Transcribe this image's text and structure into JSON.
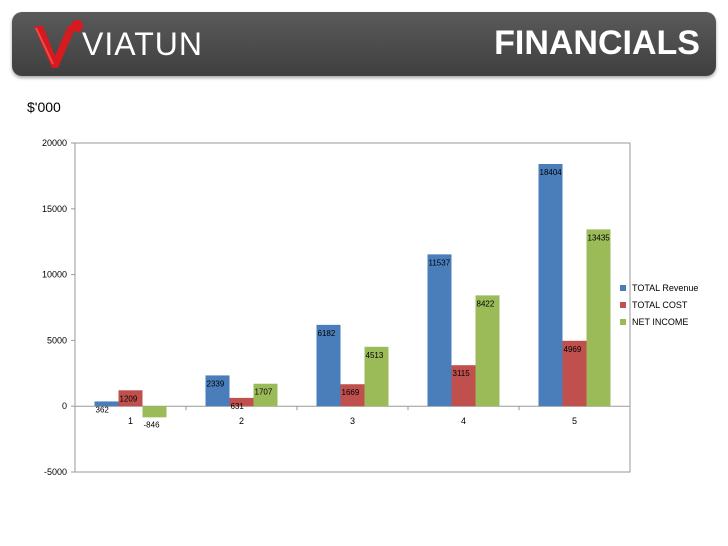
{
  "header": {
    "brand": "VIATUN",
    "title": "FINANCIALS"
  },
  "units_label": "$'000",
  "colors": {
    "revenue": "#4a7ebb",
    "cost": "#c0504d",
    "net": "#9bbb59",
    "logo_red": "#d71920"
  },
  "chart_data": {
    "type": "bar",
    "categories": [
      "1",
      "2",
      "3",
      "4",
      "5"
    ],
    "series": [
      {
        "name": "TOTAL Revenue",
        "values": [
          362,
          2339,
          6182,
          11537,
          18404
        ]
      },
      {
        "name": "TOTAL COST",
        "values": [
          1209,
          631,
          1669,
          3115,
          4969
        ]
      },
      {
        "name": "NET INCOME",
        "values": [
          -846,
          1707,
          4513,
          8422,
          13435
        ]
      }
    ],
    "ylim": [
      -5000,
      20000
    ],
    "yticks": [
      -5000,
      0,
      5000,
      10000,
      15000,
      20000
    ],
    "legend_position": "right",
    "grid": false
  }
}
